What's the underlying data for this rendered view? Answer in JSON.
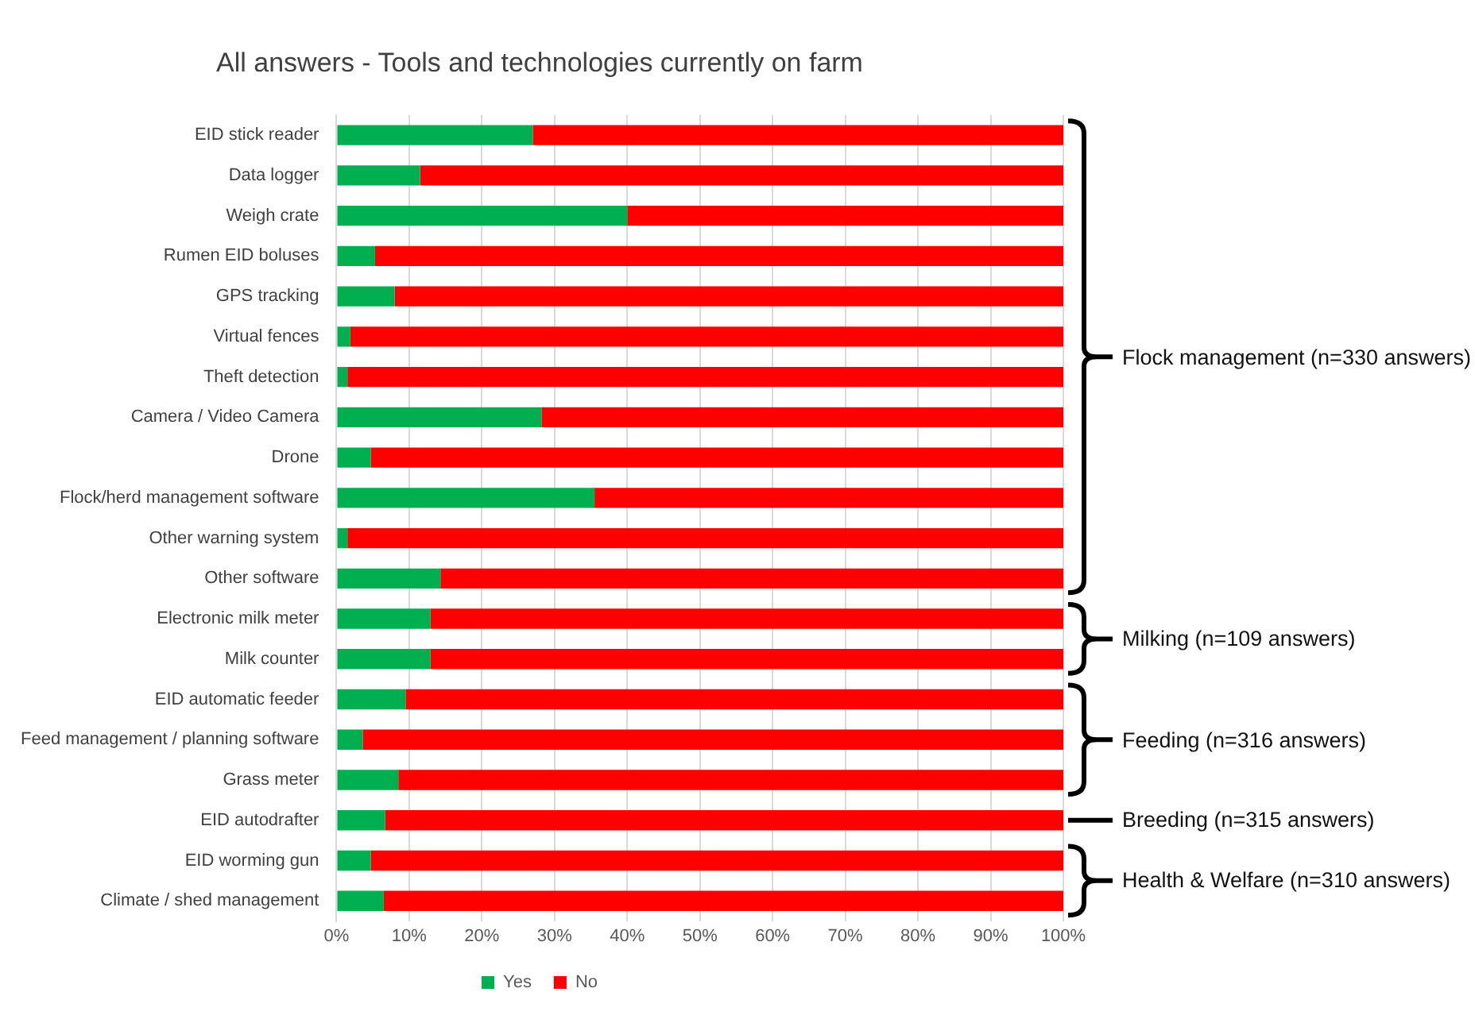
{
  "chart_data": {
    "type": "bar",
    "orientation": "horizontal",
    "stacked": true,
    "title": "All answers - Tools and technologies currently on farm",
    "categories": [
      "EID stick reader",
      "Data logger",
      "Weigh crate",
      "Rumen EID boluses",
      "GPS tracking",
      "Virtual fences",
      "Theft detection",
      "Camera / Video Camera",
      "Drone",
      "Flock/herd management software",
      "Other warning system",
      "Other software",
      "Electronic milk meter",
      "Milk counter",
      "EID automatic feeder",
      "Feed management / planning software",
      "Grass meter",
      "EID autodrafter",
      "EID worming gun",
      "Climate / shed management"
    ],
    "series": [
      {
        "name": "Yes",
        "color": "#00b050",
        "values": [
          27,
          11.5,
          40,
          5.3,
          8,
          1.9,
          1.5,
          28.2,
          4.7,
          35.5,
          1.5,
          14.3,
          12.9,
          12.9,
          9.5,
          3.6,
          8.5,
          6.7,
          4.7,
          6.5
        ]
      },
      {
        "name": "No",
        "color": "#ff0000",
        "values": [
          73,
          88.5,
          60,
          94.7,
          92,
          98.1,
          98.5,
          71.8,
          95.3,
          64.5,
          98.5,
          85.7,
          87.1,
          87.1,
          90.5,
          96.4,
          91.5,
          93.3,
          95.3,
          93.5
        ]
      }
    ],
    "xlim": [
      0,
      100
    ],
    "xticks": [
      {
        "value": 0,
        "label": "0%"
      },
      {
        "value": 10,
        "label": "10%"
      },
      {
        "value": 20,
        "label": "20%"
      },
      {
        "value": 30,
        "label": "30%"
      },
      {
        "value": 40,
        "label": "40%"
      },
      {
        "value": 50,
        "label": "50%"
      },
      {
        "value": 60,
        "label": "60%"
      },
      {
        "value": 70,
        "label": "70%"
      },
      {
        "value": 80,
        "label": "80%"
      },
      {
        "value": 90,
        "label": "90%"
      },
      {
        "value": 100,
        "label": "100%"
      }
    ],
    "grid": "x",
    "legend": "bottom",
    "annotations": [
      "Flock management (n=330 answers)",
      "Milking (n=109 answers)",
      "Feeding (n=316 answers)",
      "Breeding (n=315 answers)",
      "Health & Welfare (n=310 answers)"
    ]
  }
}
